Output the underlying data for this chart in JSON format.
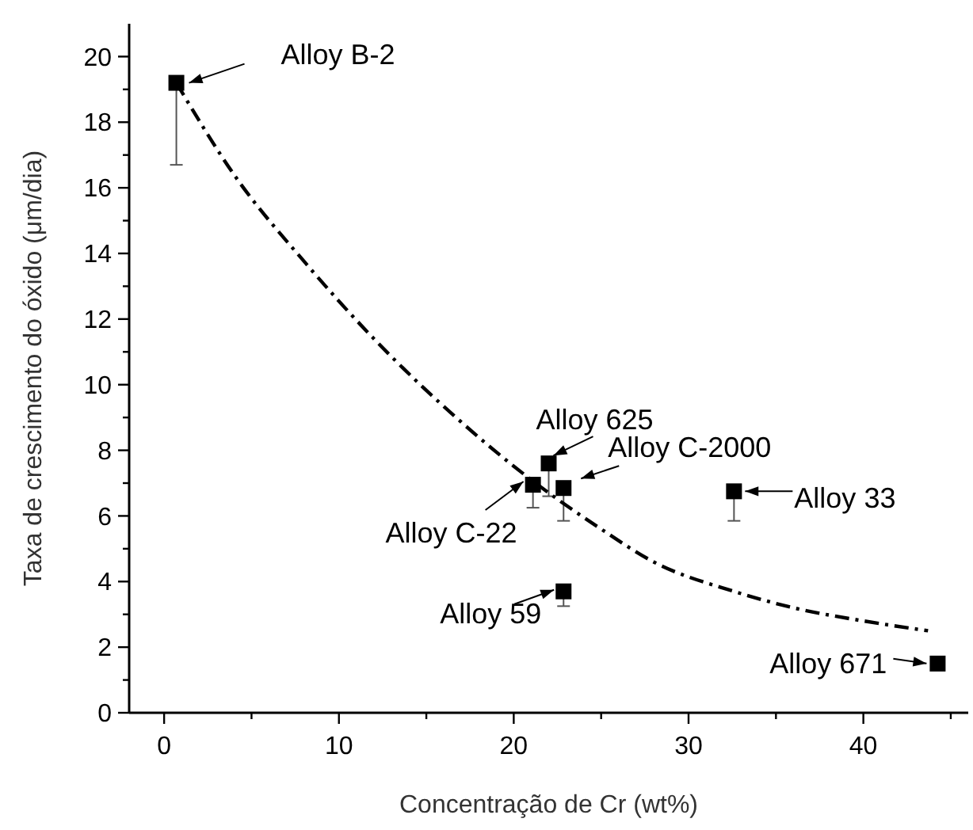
{
  "chart_data": {
    "type": "scatter",
    "xlabel": "Concentração de Cr (wt%)",
    "ylabel": "Taxa de crescimento do óxido (μm/dia)",
    "marker": "square",
    "xlim": [
      -2,
      46
    ],
    "ylim": [
      0,
      21
    ],
    "xticks": [
      0,
      {
        "value": 5,
        "label": null
      },
      10,
      {
        "value": 15,
        "label": null
      },
      20,
      {
        "value": 25,
        "label": null
      },
      30,
      {
        "value": 35,
        "label": null
      },
      40,
      {
        "value": 45,
        "label": null
      }
    ],
    "yticks": [
      0,
      {
        "value": 1,
        "label": null
      },
      2,
      {
        "value": 3,
        "label": null
      },
      4,
      {
        "value": 5,
        "label": null
      },
      6,
      {
        "value": 7,
        "label": null
      },
      8,
      {
        "value": 9,
        "label": null
      },
      10,
      {
        "value": 11,
        "label": null
      },
      12,
      {
        "value": 13,
        "label": null
      },
      14,
      {
        "value": 15,
        "label": null
      },
      16,
      {
        "value": 17,
        "label": null
      },
      18,
      {
        "value": 19,
        "label": null
      },
      20
    ],
    "series": [
      {
        "color": "#000000",
        "x": [
          0.7,
          21.1,
          22.0,
          22.85,
          32.6,
          22.85,
          44.25
        ],
        "values": [
          19.2,
          6.95,
          7.6,
          6.85,
          6.75,
          3.7,
          1.5
        ],
        "errors": [
          [
            16.7,
            19.2
          ],
          [
            6.25,
            6.95
          ],
          [
            6.6,
            7.6
          ],
          [
            5.85,
            6.85
          ],
          [
            5.85,
            6.75
          ],
          [
            3.25,
            3.7
          ],
          null
        ]
      },
      {
        "type": "line",
        "color": "#000000",
        "line_style": "dashed",
        "marker": "none",
        "x": [
          0.7,
          4,
          8.1,
          12,
          16.7,
          21,
          25,
          28,
          32.6,
          36,
          40,
          43.7
        ],
        "values": [
          19.2,
          16.4,
          13.7,
          11.4,
          9.0,
          7.1,
          5.6,
          4.6,
          3.7,
          3.2,
          2.8,
          2.5
        ]
      }
    ],
    "annotations": [
      {
        "text": "Alloy B-2",
        "x": 0.7,
        "y": 19.2
      },
      {
        "text": "Alloy C-22",
        "x": 21.1,
        "y": 6.95
      },
      {
        "text": "Alloy 625",
        "x": 22.0,
        "y": 7.6
      },
      {
        "text": "Alloy C-2000",
        "x": 22.85,
        "y": 6.85
      },
      {
        "text": "Alloy 33",
        "x": 32.6,
        "y": 6.75
      },
      {
        "text": "Alloy 59",
        "x": 22.85,
        "y": 3.7
      },
      {
        "text": "Alloy 671",
        "x": 44.25,
        "y": 1.5
      }
    ]
  }
}
